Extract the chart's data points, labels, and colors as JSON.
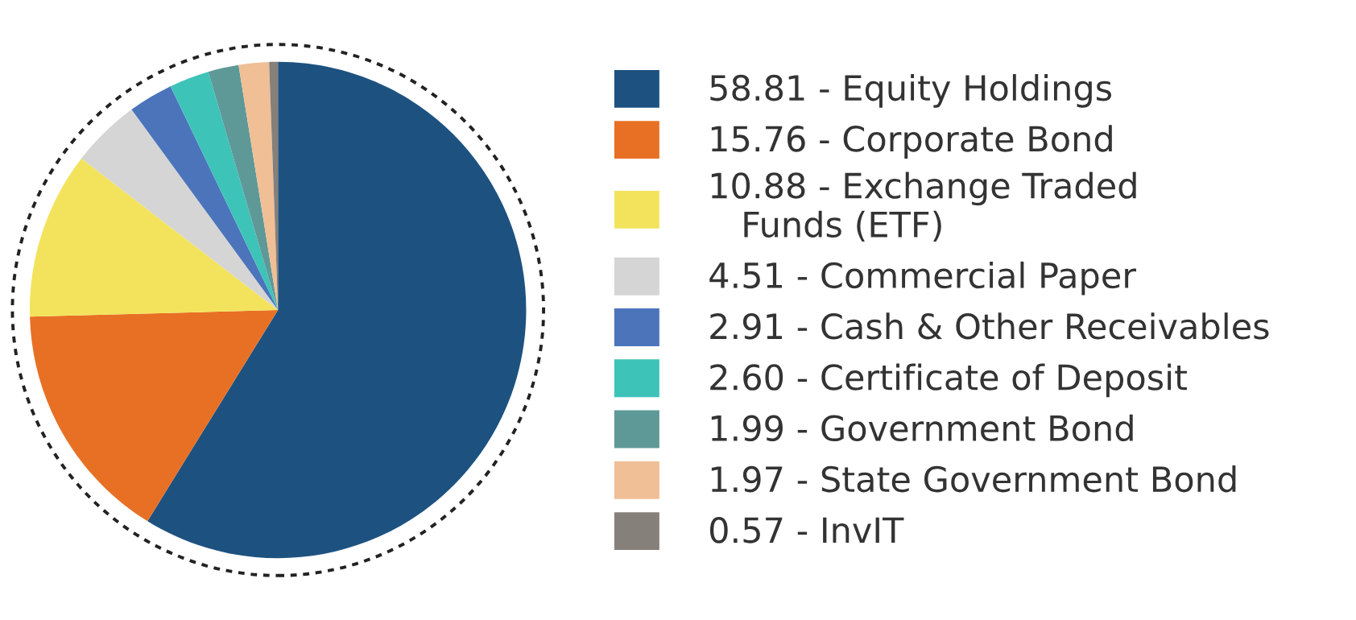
{
  "chart_data": {
    "type": "pie",
    "categories": [
      "Equity Holdings",
      "Corporate Bond",
      "Exchange Traded\n   Funds (ETF)",
      "Commercial Paper",
      "Cash & Other Receivables",
      "Certificate of Deposit",
      "Government Bond",
      "State Government Bond",
      "InvIT"
    ],
    "values": [
      58.81,
      15.76,
      10.88,
      4.51,
      2.91,
      2.6,
      1.99,
      1.97,
      0.57
    ],
    "value_labels": [
      "58.81",
      "15.76",
      "10.88",
      "4.51",
      "2.91",
      "2.60",
      "1.99",
      "1.97",
      "0.57"
    ],
    "colors": [
      "#1d5280",
      "#e87024",
      "#f3e35c",
      "#d5d5d5",
      "#4b74bb",
      "#3ec3b9",
      "#5e9998",
      "#f0bf96",
      "#86807a"
    ],
    "legend": "right"
  }
}
